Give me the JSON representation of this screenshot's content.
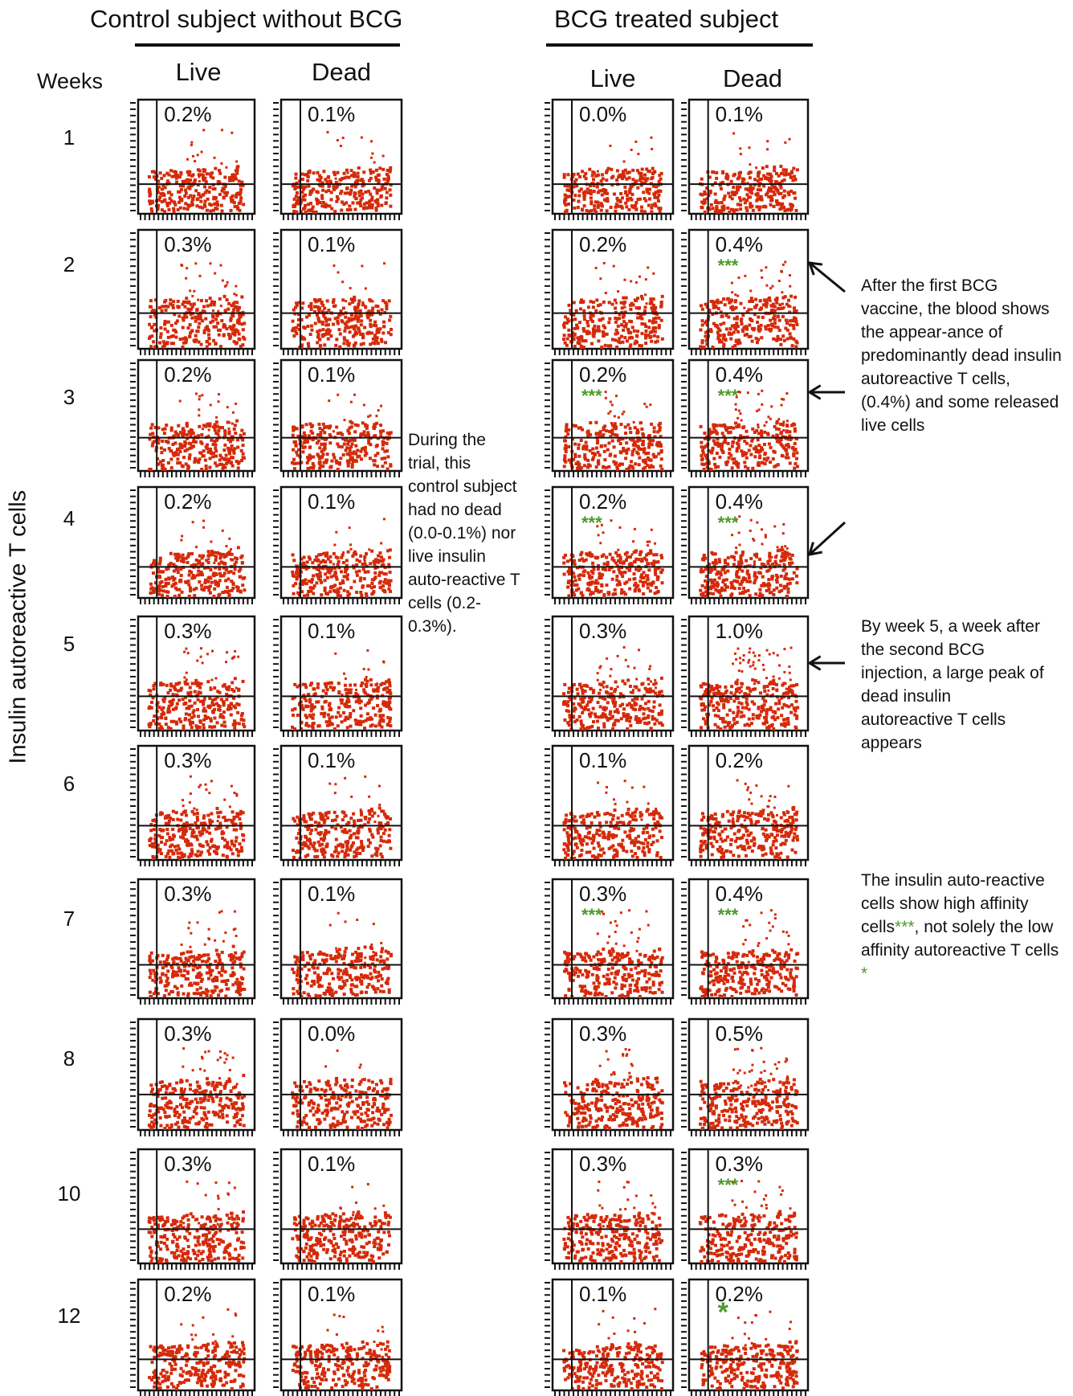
{
  "groups": {
    "control": "Control subject without BCG",
    "bcg": "BCG treated subject"
  },
  "column_labels": {
    "live": "Live",
    "dead": "Dead"
  },
  "weeks_label": "Weeks",
  "y_axis_label": "Insulin autoreactive T cells",
  "notes": {
    "control": "During the trial, this control subject had no dead (0.0-0.1%) nor live insulin auto-reactive T cells (0.2-0.3%).",
    "first": "After the first BCG vaccine, the blood shows the appear-ance of predominantly dead insulin autoreactive T cells, (0.4%) and some released live cells",
    "week5": "By week 5, a week after the second BCG injection, a large peak of dead insulin autoreactive T cells appears",
    "affinity_main": "The insulin auto-reactive cells show high affinity cells",
    "affinity_stars": "***",
    "affinity_mid": ", not solely the low affinity autoreactive T cells ",
    "affinity_star": "*"
  },
  "colors": {
    "dots": "#d42a0a",
    "stars": "#4c9a2a"
  },
  "chart_data": {
    "type": "scatter",
    "weeks": [
      "1",
      "2",
      "3",
      "4",
      "5",
      "6",
      "7",
      "8",
      "10",
      "12"
    ],
    "panels": [
      {
        "group": "Control subject without BCG",
        "column": "Live",
        "values": [
          "0.2%",
          "0.3%",
          "0.2%",
          "0.2%",
          "0.3%",
          "0.3%",
          "0.3%",
          "0.3%",
          "0.3%",
          "0.2%"
        ]
      },
      {
        "group": "Control subject without BCG",
        "column": "Dead",
        "values": [
          "0.1%",
          "0.1%",
          "0.1%",
          "0.1%",
          "0.1%",
          "0.1%",
          "0.1%",
          "0.0%",
          "0.1%",
          "0.1%"
        ]
      },
      {
        "group": "BCG treated subject",
        "column": "Live",
        "values": [
          "0.0%",
          "0.2%",
          "0.2%",
          "0.2%",
          "0.3%",
          "0.1%",
          "0.3%",
          "0.3%",
          "0.3%",
          "0.1%"
        ]
      },
      {
        "group": "BCG treated subject",
        "column": "Dead",
        "values": [
          "0.1%",
          "0.4%",
          "0.4%",
          "0.4%",
          "1.0%",
          "0.2%",
          "0.4%",
          "0.5%",
          "0.3%",
          "0.2%"
        ]
      }
    ],
    "markers": [
      {
        "column": "BCG Live",
        "week": "3",
        "symbol": "***"
      },
      {
        "column": "BCG Live",
        "week": "4",
        "symbol": "***"
      },
      {
        "column": "BCG Live",
        "week": "7",
        "symbol": "***"
      },
      {
        "column": "BCG Dead",
        "week": "2",
        "symbol": "***"
      },
      {
        "column": "BCG Dead",
        "week": "3",
        "symbol": "***"
      },
      {
        "column": "BCG Dead",
        "week": "4",
        "symbol": "***"
      },
      {
        "column": "BCG Dead",
        "week": "7",
        "symbol": "***"
      },
      {
        "column": "BCG Dead",
        "week": "10",
        "symbol": "***"
      },
      {
        "column": "BCG Dead",
        "week": "12",
        "symbol": "*"
      }
    ]
  }
}
